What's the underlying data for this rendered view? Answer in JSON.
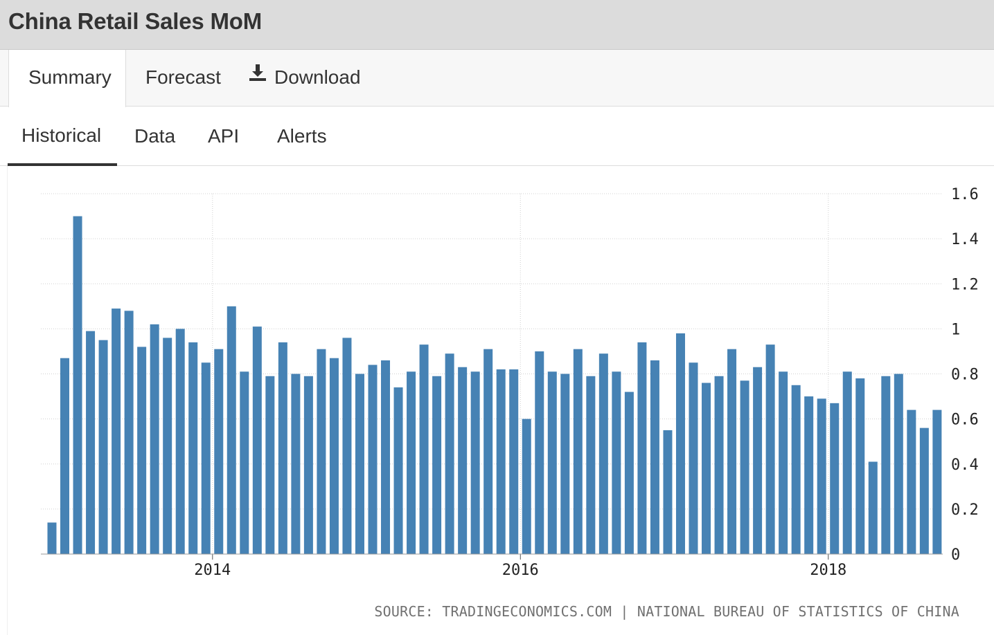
{
  "page": {
    "title": "China Retail Sales MoM"
  },
  "tabs_primary": [
    {
      "label": "Summary",
      "active": true
    },
    {
      "label": "Forecast",
      "active": false
    },
    {
      "label": "Download",
      "active": false,
      "icon": "download-icon"
    }
  ],
  "tabs_secondary": [
    {
      "label": "Historical",
      "active": true
    },
    {
      "label": "Data",
      "active": false
    },
    {
      "label": "API",
      "active": false
    },
    {
      "label": "Alerts",
      "active": false
    }
  ],
  "source": "SOURCE: TRADINGECONOMICS.COM | NATIONAL BUREAU OF STATISTICS OF CHINA",
  "colors": {
    "bar": "#4682b4",
    "title_bar_bg": "#dcdcdc",
    "grid": "#d0d0d0"
  },
  "chart_data": {
    "type": "bar",
    "title": "",
    "xlabel": "",
    "ylabel": "",
    "ylim": [
      0,
      1.6
    ],
    "yticks": [
      "0",
      "0.2",
      "0.4",
      "0.6",
      "0.8",
      "1",
      "1.2",
      "1.4",
      "1.6"
    ],
    "xticks": [
      "2014",
      "2016",
      "2018"
    ],
    "y_axis_position": "right",
    "grid": true,
    "series": [
      {
        "values": [
          0.14,
          0.87,
          1.5,
          0.99,
          0.95,
          1.09,
          1.08,
          0.92,
          1.02,
          0.96,
          1.0,
          0.94,
          0.85,
          0.91,
          1.1,
          0.81,
          1.01,
          0.79,
          0.94,
          0.8,
          0.79,
          0.91,
          0.87,
          0.96,
          0.8,
          0.84,
          0.86,
          0.74,
          0.81,
          0.93,
          0.79,
          0.89,
          0.83,
          0.81,
          0.91,
          0.82,
          0.82,
          0.6,
          0.9,
          0.81,
          0.8,
          0.91,
          0.79,
          0.89,
          0.81,
          0.72,
          0.94,
          0.86,
          0.55,
          0.98,
          0.85,
          0.76,
          0.79,
          0.91,
          0.77,
          0.83,
          0.93,
          0.81,
          0.75,
          0.7,
          0.69,
          0.67,
          0.81,
          0.78,
          0.41,
          0.79,
          0.8,
          0.64,
          0.56,
          0.64
        ]
      }
    ]
  }
}
